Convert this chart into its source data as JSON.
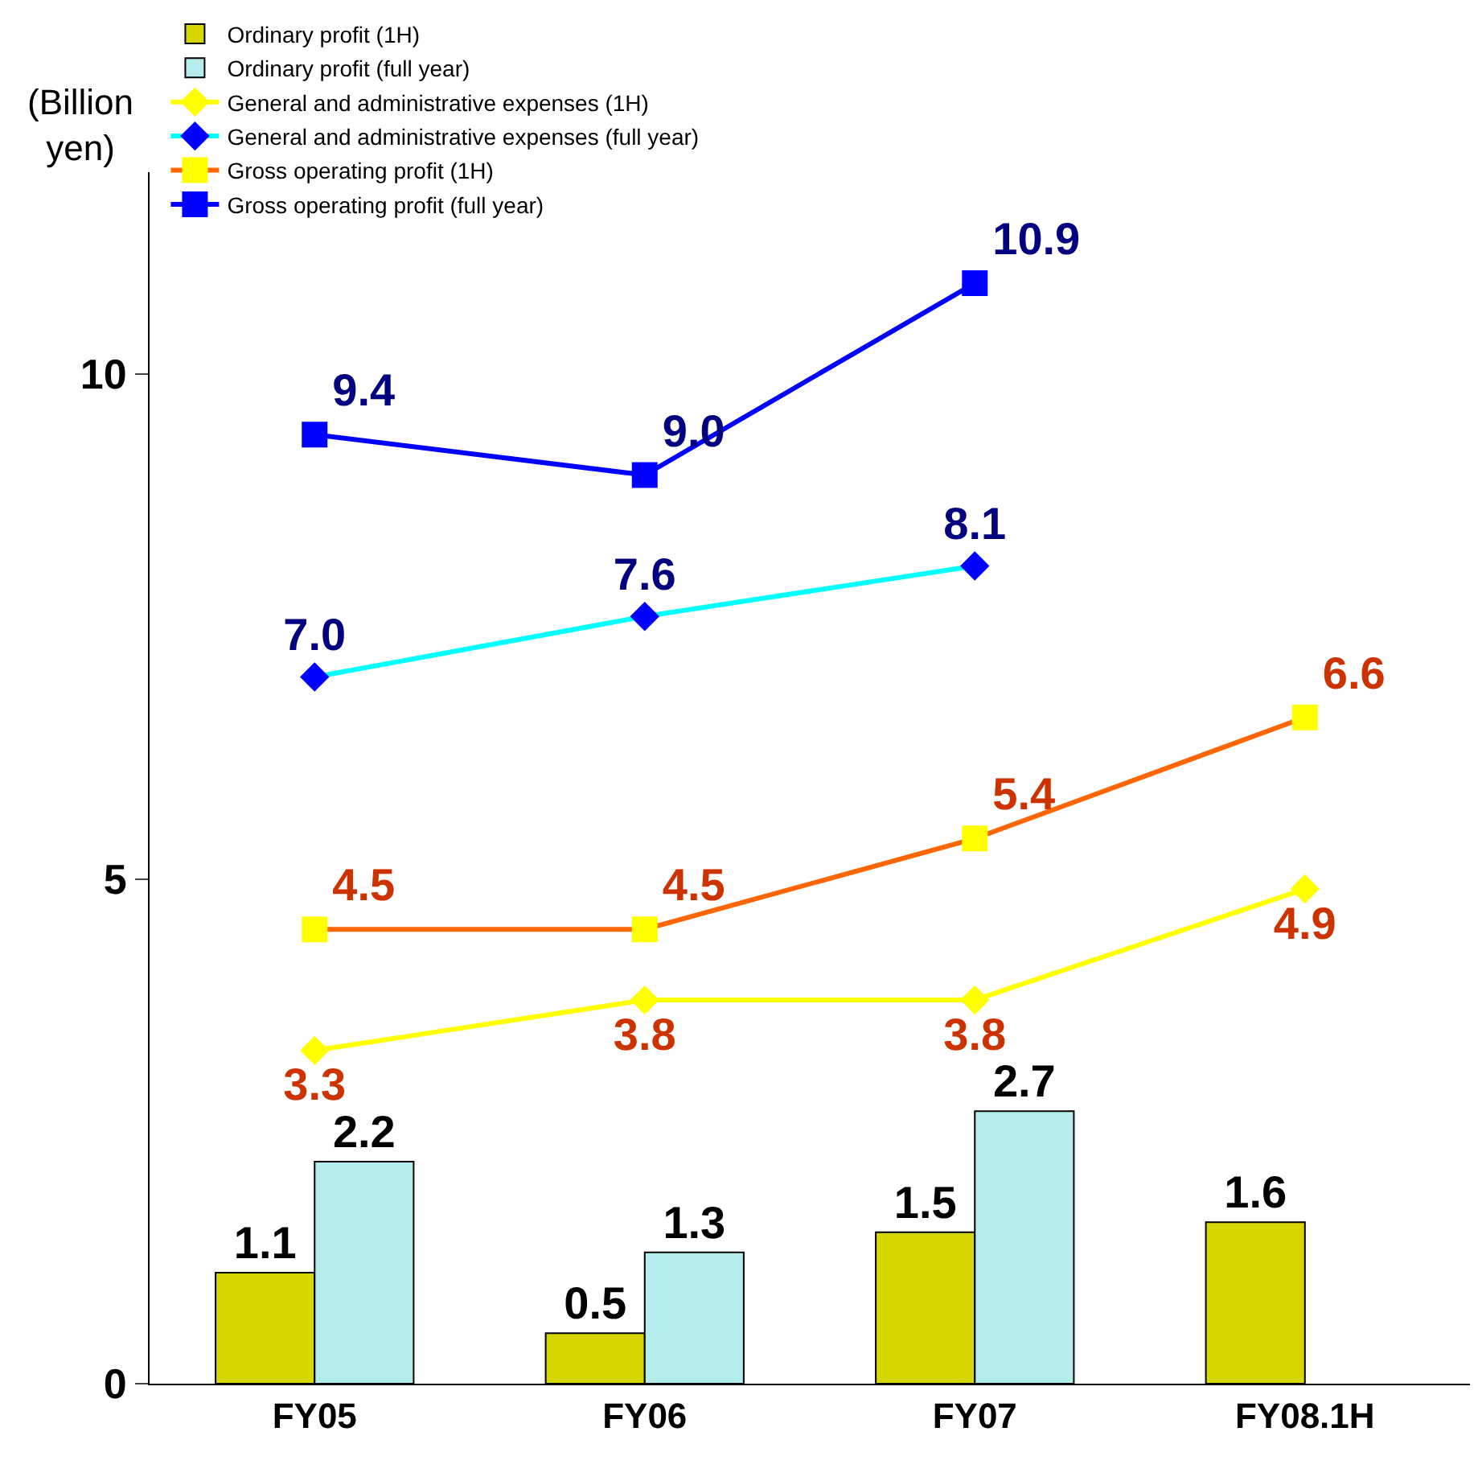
{
  "chart_data": {
    "type": "bar",
    "ylabel": "(Billion yen)",
    "categories": [
      "FY05",
      "FY06",
      "FY07",
      "FY08.1H"
    ],
    "series": [
      {
        "name": "Ordinary profit (1H)",
        "color": "#d6d600",
        "values": [
          1.1,
          0.5,
          1.5,
          1.6
        ],
        "value_labels": [
          "1.1",
          "0.5",
          "1.5",
          "1.6"
        ]
      },
      {
        "name": "Ordinary profit (full year)",
        "color": "#b4ecec",
        "values": [
          2.2,
          1.3,
          2.7,
          null
        ],
        "value_labels": [
          "2.2",
          "1.3",
          "2.7",
          null
        ]
      },
      {
        "name": "General and administrative expenses (1H)",
        "type": "line",
        "color": "#ffff00",
        "marker": "diamond",
        "values": [
          3.3,
          3.8,
          3.8,
          4.9
        ],
        "value_labels": [
          "3.3",
          "3.8",
          "3.8",
          "4.9"
        ]
      },
      {
        "name": "General and administrative expenses (full year)",
        "type": "line",
        "color": "#00ffff",
        "marker": "diamond",
        "values": [
          7.0,
          7.6,
          8.1,
          null
        ],
        "value_labels": [
          "7.0",
          "7.6",
          "8.1",
          null
        ]
      },
      {
        "name": "Gross operating profit (1H)",
        "type": "line",
        "color": "#ff6600",
        "marker": "square",
        "values": [
          4.5,
          4.5,
          5.4,
          6.6
        ],
        "value_labels": [
          "4.5",
          "4.5",
          "5.4",
          "6.6"
        ]
      },
      {
        "name": "Gross operating profit (full year)",
        "type": "line",
        "color": "#0000ff",
        "marker": "square",
        "values": [
          9.4,
          9.0,
          10.9,
          null
        ],
        "value_labels": [
          "9.4",
          "9.0",
          "10.9",
          null
        ]
      }
    ],
    "ylim": [
      0,
      12
    ],
    "yticks": [
      0,
      5,
      10
    ],
    "grid": false,
    "legend": "top"
  }
}
